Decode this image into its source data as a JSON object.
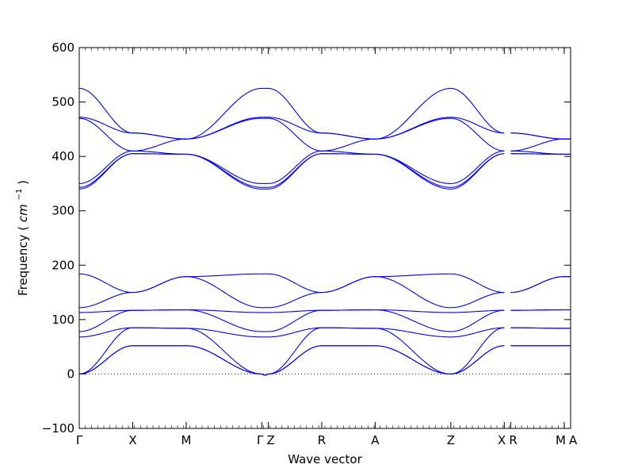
{
  "chart_data": {
    "type": "line",
    "xlabel": "Wave vector",
    "ylabel": "Frequency",
    "ylabel_unit_base": "cm",
    "ylabel_unit_exp": "−1",
    "ylim": [
      -100,
      600
    ],
    "yticks": [
      -100,
      0,
      100,
      200,
      300,
      400,
      500,
      600
    ],
    "zero_reference_line": true,
    "line_color": "#0000ff",
    "path_ticks": [
      {
        "label": "Γ",
        "x": 0.0
      },
      {
        "label": "X",
        "x": 0.5
      },
      {
        "label": "M",
        "x": 1.0
      },
      {
        "label": "Γ",
        "x": 1.7071
      },
      {
        "label": "Z",
        "x": 1.7671
      },
      {
        "label": "R",
        "x": 2.2671
      },
      {
        "label": "A",
        "x": 2.7671
      },
      {
        "label": "Z",
        "x": 3.4742
      },
      {
        "label": "X",
        "x": 3.9742
      },
      {
        "label": "R",
        "x": 4.0342
      },
      {
        "label": "M",
        "x": 4.5342
      },
      {
        "label": "A",
        "x": 4.5942
      }
    ],
    "segments": [
      {
        "name": "Γ-X",
        "x0": 0.0,
        "x1": 0.5,
        "start": [
          0,
          0,
          0,
          68,
          78,
          113,
          122,
          184,
          340,
          343,
          350,
          470,
          472,
          525
        ],
        "end": [
          52,
          52,
          85,
          85,
          117,
          117,
          150,
          150,
          405,
          405,
          410,
          410,
          443,
          443
        ]
      },
      {
        "name": "X-M",
        "x0": 0.5,
        "x1": 1.0,
        "start": [
          52,
          52,
          85,
          85,
          117,
          117,
          150,
          150,
          405,
          405,
          410,
          410,
          443,
          443
        ],
        "end": [
          52,
          52,
          84,
          84,
          118,
          118,
          179,
          179,
          404,
          404,
          404,
          432,
          432,
          432
        ]
      },
      {
        "name": "M-Γ",
        "x0": 1.0,
        "x1": 1.7071,
        "start": [
          52,
          52,
          84,
          84,
          118,
          118,
          179,
          179,
          404,
          404,
          404,
          432,
          432,
          432
        ],
        "end": [
          0,
          0,
          0,
          68,
          78,
          113,
          122,
          184,
          340,
          343,
          350,
          470,
          472,
          525
        ]
      },
      {
        "name": "Z-R",
        "x0": 1.7671,
        "x1": 2.2671,
        "start": [
          0,
          0,
          0,
          68,
          78,
          113,
          122,
          184,
          340,
          343,
          350,
          470,
          472,
          525
        ],
        "end": [
          52,
          52,
          85,
          85,
          117,
          117,
          150,
          150,
          405,
          405,
          410,
          410,
          443,
          443
        ]
      },
      {
        "name": "R-A",
        "x0": 2.2671,
        "x1": 2.7671,
        "start": [
          52,
          52,
          85,
          85,
          117,
          117,
          150,
          150,
          405,
          405,
          410,
          410,
          443,
          443
        ],
        "end": [
          52,
          52,
          84,
          84,
          118,
          118,
          179,
          179,
          404,
          404,
          404,
          432,
          432,
          432
        ]
      },
      {
        "name": "A-Z",
        "x0": 2.7671,
        "x1": 3.4742,
        "start": [
          52,
          52,
          84,
          84,
          118,
          118,
          179,
          179,
          404,
          404,
          404,
          432,
          432,
          432
        ],
        "end": [
          0,
          0,
          0,
          68,
          78,
          113,
          122,
          184,
          340,
          343,
          350,
          470,
          472,
          525
        ]
      },
      {
        "name": "Z-X",
        "x0": 3.4742,
        "x1": 3.9742,
        "start": [
          0,
          0,
          0,
          68,
          78,
          113,
          122,
          184,
          340,
          343,
          350,
          470,
          472,
          525
        ],
        "end": [
          52,
          52,
          85,
          85,
          117,
          117,
          150,
          150,
          405,
          405,
          410,
          410,
          443,
          443
        ]
      },
      {
        "name": "R-M",
        "x0": 4.0342,
        "x1": 4.5342,
        "start": [
          52,
          52,
          85,
          85,
          117,
          117,
          150,
          150,
          405,
          405,
          410,
          410,
          443,
          443
        ],
        "end": [
          52,
          52,
          84,
          84,
          118,
          118,
          179,
          179,
          404,
          404,
          404,
          432,
          432,
          432
        ]
      }
    ],
    "gamma_z_segment": {
      "name": "Γ-Z",
      "x0": 1.7071,
      "x1": 1.7671,
      "values": [
        0,
        0,
        0,
        68,
        78,
        113,
        122,
        184,
        340,
        343,
        350,
        470,
        472,
        525
      ]
    },
    "m_a_segment": {
      "name": "M-A",
      "x0": 4.5342,
      "x1": 4.5942,
      "values": [
        52,
        52,
        84,
        84,
        118,
        118,
        179,
        179,
        404,
        404,
        404,
        432,
        432,
        432
      ]
    }
  }
}
